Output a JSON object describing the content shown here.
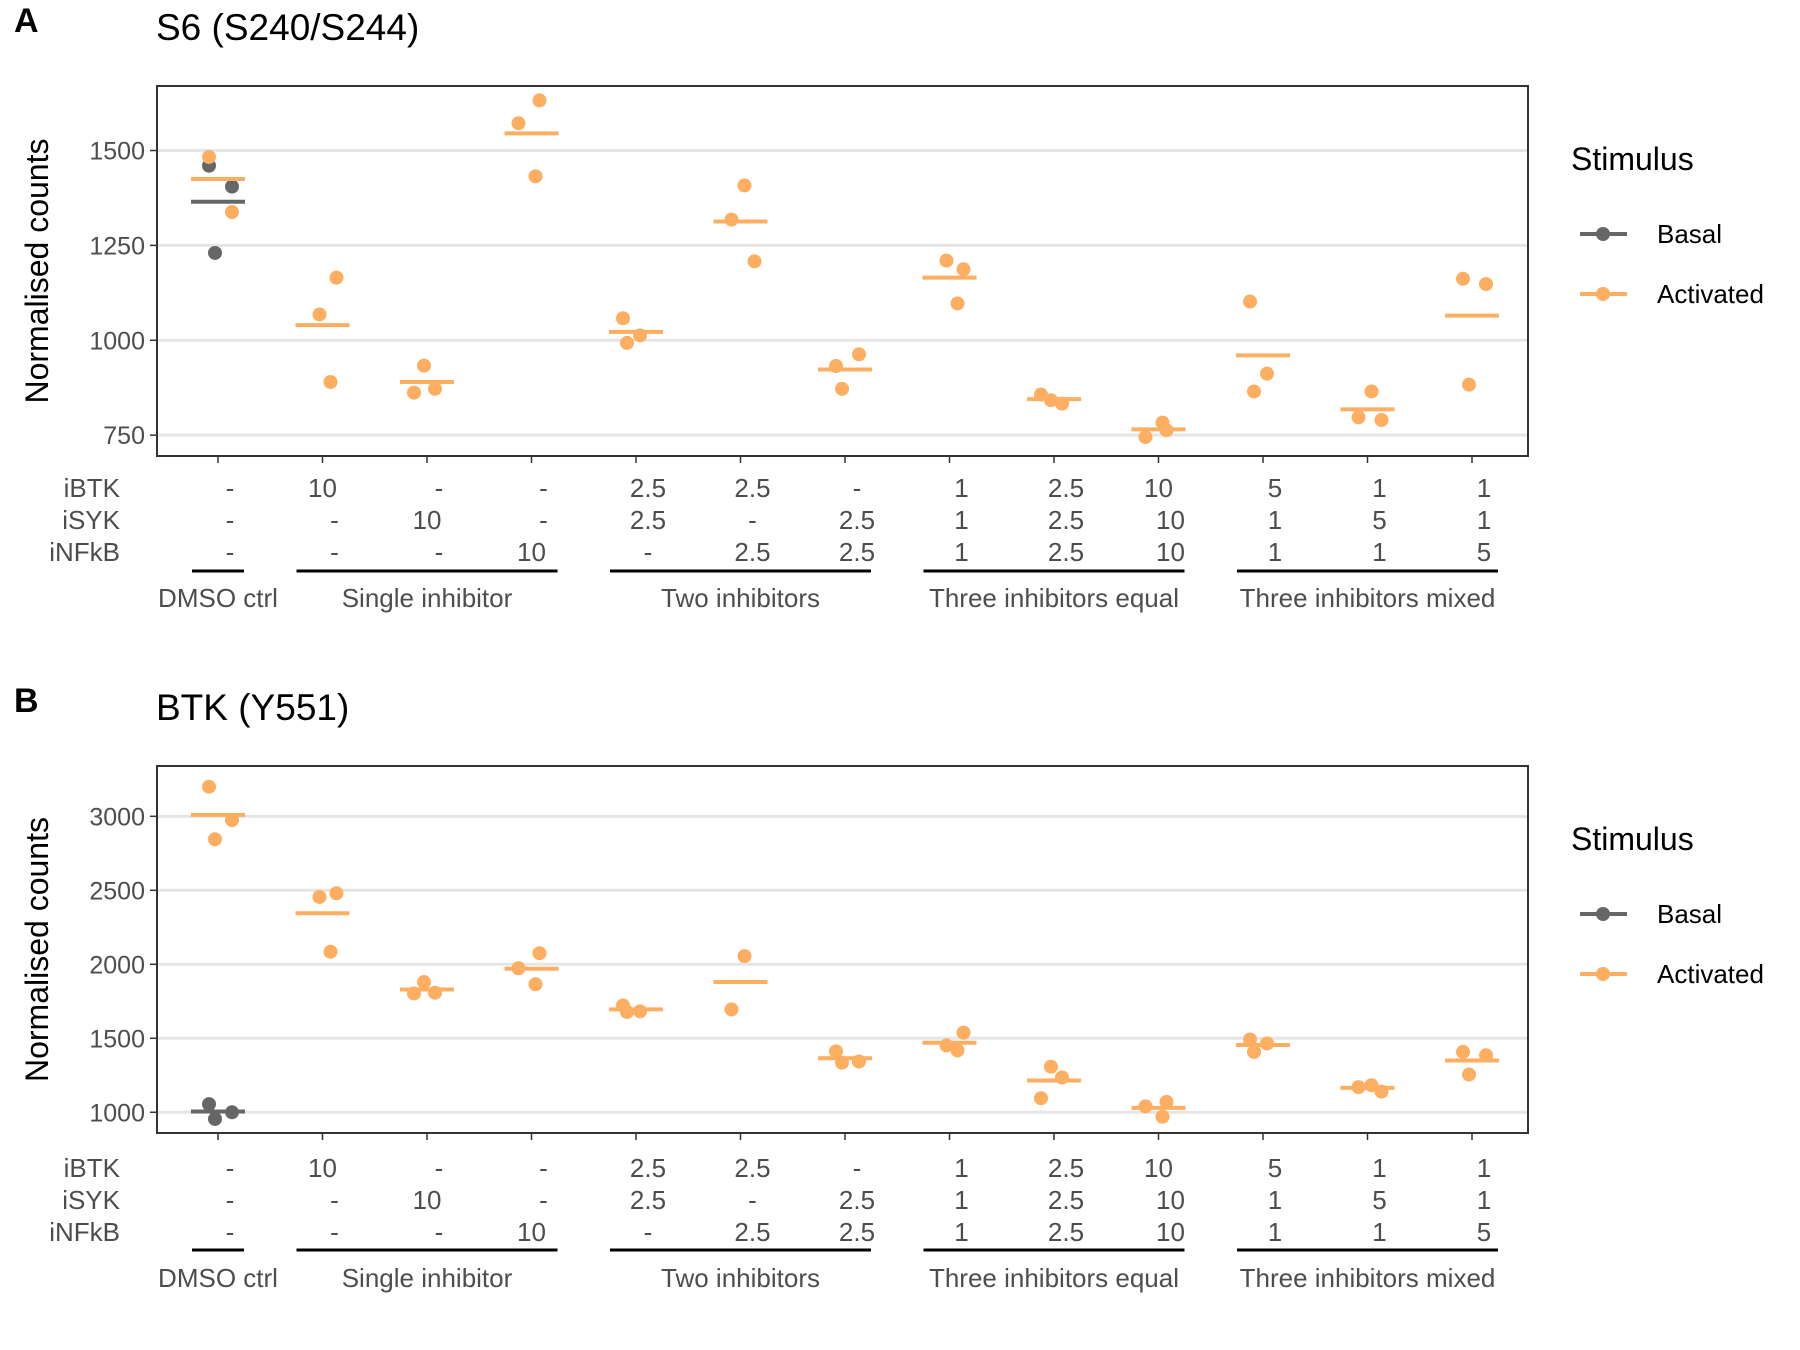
{
  "figure": {
    "layout": "two stacked dot-plot panels",
    "legend": {
      "title": "Stimulus",
      "position": "right",
      "entries": [
        {
          "label": "Basal",
          "color": "#666666"
        },
        {
          "label": "Activated",
          "color": "#FDAE61"
        }
      ]
    },
    "condition_table": {
      "row_labels": [
        "iBTK",
        "iSYK",
        "iNFkB"
      ],
      "columns": [
        {
          "iBTK": "-",
          "iSYK": "-",
          "iNFkB": "-"
        },
        {
          "iBTK": "10",
          "iSYK": "-",
          "iNFkB": "-"
        },
        {
          "iBTK": "-",
          "iSYK": "10",
          "iNFkB": "-"
        },
        {
          "iBTK": "-",
          "iSYK": "-",
          "iNFkB": "10"
        },
        {
          "iBTK": "2.5",
          "iSYK": "2.5",
          "iNFkB": "-"
        },
        {
          "iBTK": "2.5",
          "iSYK": "-",
          "iNFkB": "2.5"
        },
        {
          "iBTK": "-",
          "iSYK": "2.5",
          "iNFkB": "2.5"
        },
        {
          "iBTK": "1",
          "iSYK": "1",
          "iNFkB": "1"
        },
        {
          "iBTK": "2.5",
          "iSYK": "2.5",
          "iNFkB": "2.5"
        },
        {
          "iBTK": "10",
          "iSYK": "10",
          "iNFkB": "10"
        },
        {
          "iBTK": "5",
          "iSYK": "1",
          "iNFkB": "1"
        },
        {
          "iBTK": "1",
          "iSYK": "5",
          "iNFkB": "1"
        },
        {
          "iBTK": "1",
          "iSYK": "1",
          "iNFkB": "5"
        }
      ],
      "groups": [
        {
          "label": "DMSO ctrl",
          "columns": [
            0,
            0
          ]
        },
        {
          "label": "Single inhibitor",
          "columns": [
            1,
            3
          ]
        },
        {
          "label": "Two inhibitors",
          "columns": [
            4,
            6
          ]
        },
        {
          "label": "Three inhibitors equal",
          "columns": [
            7,
            9
          ]
        },
        {
          "label": "Three inhibitors mixed",
          "columns": [
            10,
            12
          ]
        }
      ]
    }
  },
  "chart_data": [
    {
      "type": "scatter",
      "panel_label": "A",
      "title": "S6 (S240/S244)",
      "ylabel": "Normalised counts",
      "ylim": [
        695,
        1670
      ],
      "yticks": [
        750,
        1000,
        1250,
        1500
      ],
      "grid": true,
      "series": [
        {
          "name": "Basal",
          "color": "#666666",
          "points": [
            [
              0,
              1460
            ],
            [
              0,
              1405
            ],
            [
              0,
              1230
            ]
          ],
          "means": [
            [
              0,
              1365
            ]
          ]
        },
        {
          "name": "Activated",
          "color": "#FDAE61",
          "points": [
            [
              0,
              1483
            ],
            [
              0,
              1338
            ],
            [
              1,
              1165
            ],
            [
              1,
              1068
            ],
            [
              1,
              890
            ],
            [
              2,
              933
            ],
            [
              2,
              872
            ],
            [
              2,
              862
            ],
            [
              3,
              1632
            ],
            [
              3,
              1572
            ],
            [
              3,
              1432
            ],
            [
              4,
              1058
            ],
            [
              4,
              1013
            ],
            [
              4,
              993
            ],
            [
              5,
              1408
            ],
            [
              5,
              1318
            ],
            [
              5,
              1208
            ],
            [
              6,
              932
            ],
            [
              6,
              963
            ],
            [
              6,
              872
            ],
            [
              7,
              1187
            ],
            [
              7,
              1210
            ],
            [
              7,
              1097
            ],
            [
              8,
              842
            ],
            [
              8,
              833
            ],
            [
              8,
              857
            ],
            [
              9,
              763
            ],
            [
              9,
              745
            ],
            [
              9,
              783
            ],
            [
              10,
              1102
            ],
            [
              10,
              912
            ],
            [
              10,
              865
            ],
            [
              11,
              865
            ],
            [
              11,
              797
            ],
            [
              11,
              790
            ],
            [
              12,
              1162
            ],
            [
              12,
              1148
            ],
            [
              12,
              883
            ]
          ],
          "means": [
            [
              0,
              1425
            ],
            [
              1,
              1040
            ],
            [
              2,
              890
            ],
            [
              3,
              1545
            ],
            [
              4,
              1022
            ],
            [
              5,
              1313
            ],
            [
              6,
              923
            ],
            [
              7,
              1165
            ],
            [
              8,
              845
            ],
            [
              9,
              765
            ],
            [
              10,
              960
            ],
            [
              11,
              818
            ],
            [
              12,
              1065
            ]
          ]
        }
      ]
    },
    {
      "type": "scatter",
      "panel_label": "B",
      "title": "BTK (Y551)",
      "ylabel": "Normalised counts",
      "ylim": [
        860,
        3340
      ],
      "yticks": [
        1000,
        1500,
        2000,
        2500,
        3000
      ],
      "grid": true,
      "series": [
        {
          "name": "Basal",
          "color": "#666666",
          "points": [
            [
              0,
              1055
            ],
            [
              0,
              1000
            ],
            [
              0,
              955
            ]
          ],
          "means": [
            [
              0,
              1005
            ]
          ]
        },
        {
          "name": "Activated",
          "color": "#FDAE61",
          "points": [
            [
              0,
              3200
            ],
            [
              0,
              2975
            ],
            [
              0,
              2845
            ],
            [
              1,
              2480
            ],
            [
              1,
              2455
            ],
            [
              1,
              2085
            ],
            [
              2,
              1880
            ],
            [
              2,
              1808
            ],
            [
              2,
              1803
            ],
            [
              3,
              2075
            ],
            [
              3,
              1973
            ],
            [
              3,
              1865
            ],
            [
              4,
              1722
            ],
            [
              4,
              1682
            ],
            [
              4,
              1678
            ],
            [
              5,
              2055
            ],
            [
              5,
              1695
            ],
            [
              6,
              1412
            ],
            [
              6,
              1343
            ],
            [
              6,
              1335
            ],
            [
              7,
              1538
            ],
            [
              7,
              1452
            ],
            [
              7,
              1418
            ],
            [
              8,
              1308
            ],
            [
              8,
              1235
            ],
            [
              8,
              1095
            ],
            [
              9,
              1070
            ],
            [
              9,
              1040
            ],
            [
              9,
              970
            ],
            [
              10,
              1492
            ],
            [
              10,
              1465
            ],
            [
              10,
              1408
            ],
            [
              11,
              1183
            ],
            [
              11,
              1170
            ],
            [
              11,
              1140
            ],
            [
              12,
              1408
            ],
            [
              12,
              1385
            ],
            [
              12,
              1255
            ]
          ],
          "means": [
            [
              0,
              3010
            ],
            [
              1,
              2345
            ],
            [
              2,
              1830
            ],
            [
              3,
              1970
            ],
            [
              4,
              1695
            ],
            [
              5,
              1880
            ],
            [
              6,
              1365
            ],
            [
              7,
              1470
            ],
            [
              8,
              1215
            ],
            [
              9,
              1030
            ],
            [
              10,
              1455
            ],
            [
              11,
              1165
            ],
            [
              12,
              1350
            ]
          ]
        }
      ]
    }
  ]
}
